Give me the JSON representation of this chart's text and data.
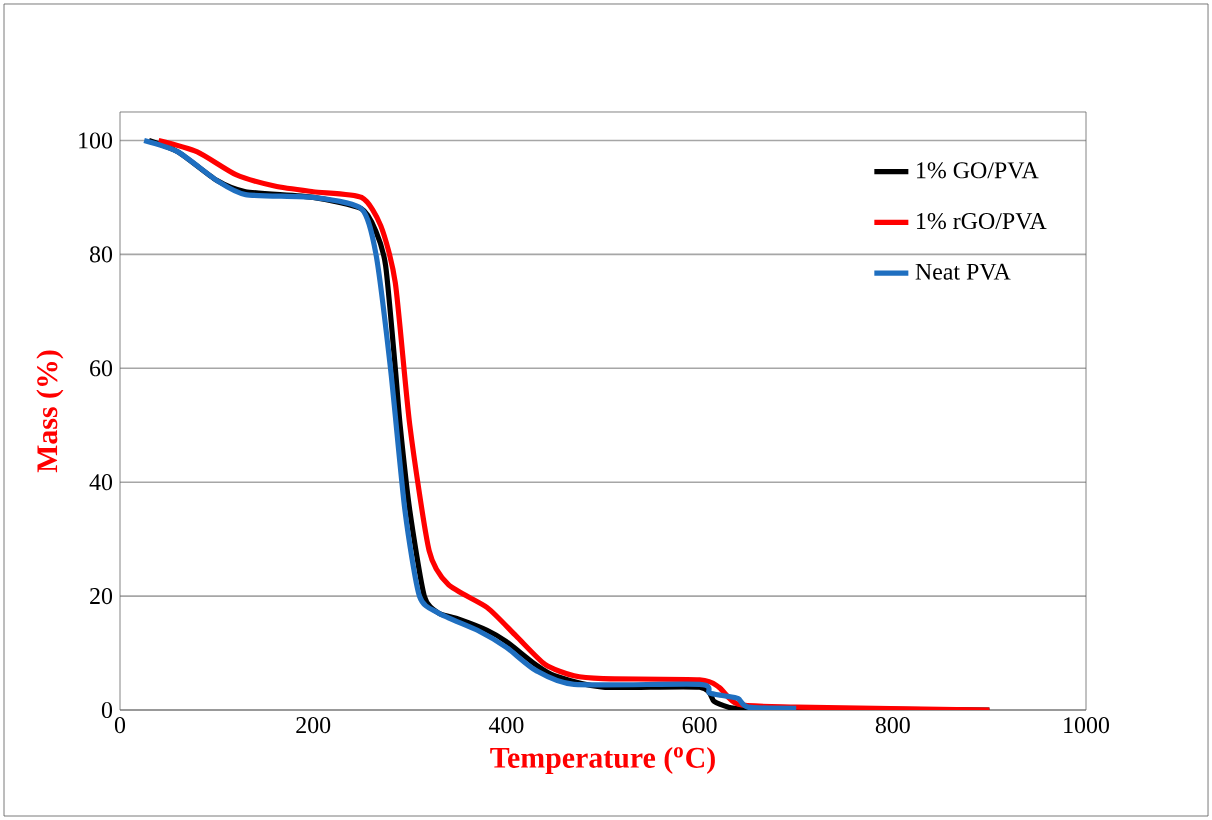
{
  "chart_data": {
    "type": "line",
    "xlabel": "Temperature ($^{o}$C)",
    "ylabel": "Mass (%)",
    "xlim": [
      0,
      1000
    ],
    "ylim": [
      0,
      105
    ],
    "xticks": [
      0,
      200,
      400,
      600,
      800,
      1000
    ],
    "yticks": [
      0,
      20,
      40,
      60,
      80,
      100
    ],
    "grid": "y",
    "legend": "top right",
    "marker": "none",
    "line_style": "solid",
    "series": [
      {
        "name": "1% GO/PVA",
        "color": "#000000",
        "x": [
          30,
          60,
          100,
          130,
          200,
          250,
          265,
          275,
          285,
          290,
          300,
          315,
          330,
          350,
          380,
          400,
          430,
          450,
          500,
          600,
          615,
          630,
          640,
          700,
          900
        ],
        "values": [
          100,
          98,
          93,
          91,
          90,
          88,
          84,
          78,
          60,
          50,
          35,
          20,
          17,
          16,
          14,
          12,
          8,
          6,
          4,
          4,
          1.5,
          0.5,
          0.3,
          0.2,
          0
        ]
      },
      {
        "name": "1% rGO/PVA",
        "color": "#ff0000",
        "x": [
          40,
          80,
          120,
          160,
          200,
          250,
          270,
          285,
          300,
          320,
          340,
          380,
          410,
          440,
          470,
          500,
          600,
          620,
          640,
          700,
          900
        ],
        "values": [
          100,
          98,
          94,
          92,
          91,
          90,
          85,
          75,
          50,
          28,
          22,
          18,
          13,
          8,
          6,
          5.5,
          5.3,
          4,
          1,
          0.5,
          0
        ]
      },
      {
        "name": "Neat PVA",
        "color": "#1f6fc0",
        "x": [
          25,
          60,
          100,
          130,
          200,
          250,
          265,
          280,
          295,
          310,
          330,
          370,
          400,
          430,
          470,
          600,
          610,
          625,
          640,
          650,
          700
        ],
        "values": [
          100,
          98,
          93,
          90.5,
          90,
          88,
          80,
          60,
          35,
          20,
          17,
          14,
          11,
          7,
          4.5,
          4.5,
          3,
          2.5,
          2,
          0.5,
          0.3
        ]
      }
    ]
  }
}
